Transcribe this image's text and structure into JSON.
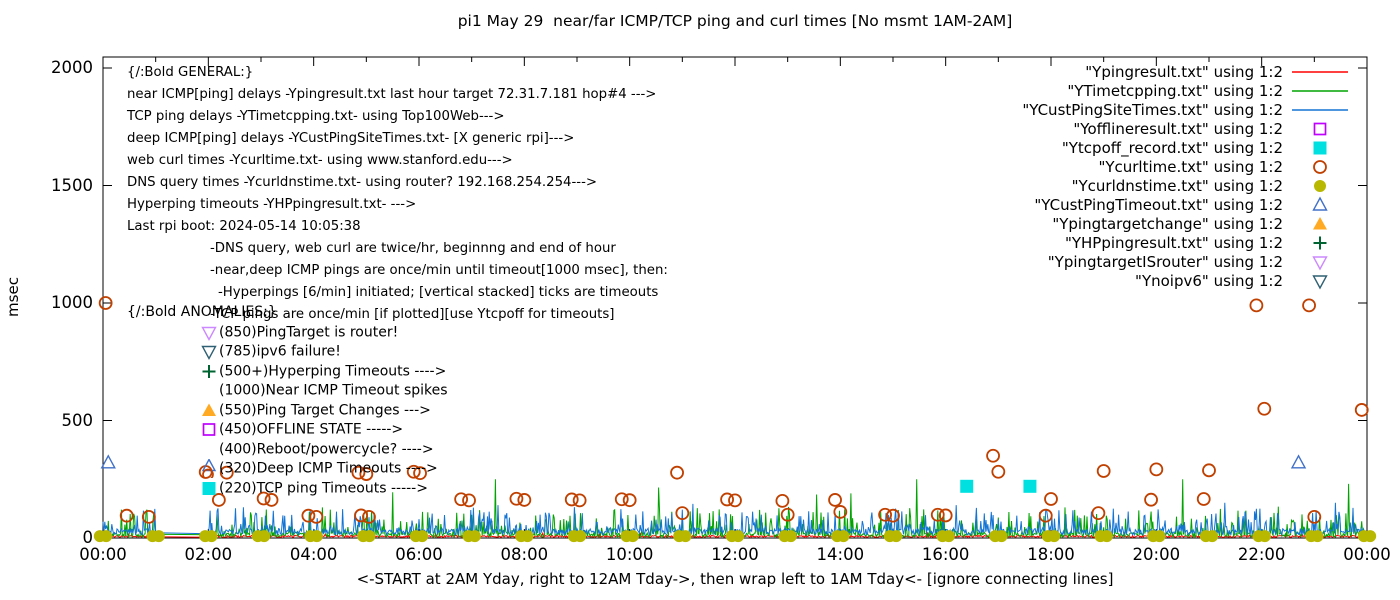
{
  "title": "pi1 May 29  near/far ICMP/TCP ping and curl times [No msmt 1AM-2AM]",
  "axes": {
    "y_label": "msec",
    "x_label": "<-START at 2AM Yday, right to 12AM Tday->, then wrap left to 1AM Tday<- [ignore connecting lines]",
    "y_ticks": [
      0,
      500,
      1000,
      1500,
      2000
    ],
    "x_tick_labels": [
      "00:00",
      "02:00",
      "04:00",
      "06:00",
      "08:00",
      "10:00",
      "12:00",
      "14:00",
      "16:00",
      "18:00",
      "20:00",
      "22:00",
      "00:00"
    ]
  },
  "colors": {
    "near_icmp_red": "#ff0000",
    "tcp_ping_green": "#00a400",
    "deep_icmp_blue": "#1474d4",
    "offline_magenta": "#bf00ff",
    "tcpoff_cyan": "#00e0e0",
    "curl_orange": "#c04000",
    "dns_olive": "#b8b800",
    "deep_timeout_blue": "#4070c8",
    "target_change_orange": "#ffaa22",
    "hyperping_green": "#006432",
    "isrouter_violet": "#cc88ff",
    "noipv6_steel": "#2f6073",
    "text": "#000000",
    "background": "#ffffff"
  },
  "legend": [
    {
      "label": "\"Ypingresult.txt\" using 1:2",
      "marker": "line",
      "color": "#ff0000"
    },
    {
      "label": "\"YTimetcpping.txt\" using 1:2",
      "marker": "line",
      "color": "#00a400"
    },
    {
      "label": "\"YCustPingSiteTimes.txt\" using 1:2",
      "marker": "line",
      "color": "#1474d4"
    },
    {
      "label": "\"Yofflineresult.txt\" using 1:2",
      "marker": "square-open",
      "color": "#bf00ff"
    },
    {
      "label": "\"Ytcpoff_record.txt\" using 1:2",
      "marker": "square-filled",
      "color": "#00e0e0"
    },
    {
      "label": "\"Ycurltime.txt\" using 1:2",
      "marker": "circle-open",
      "color": "#c04000"
    },
    {
      "label": "\"Ycurldnstime.txt\" using 1:2",
      "marker": "circle-filled",
      "color": "#b8b800"
    },
    {
      "label": "\"YCustPingTimeout.txt\" using 1:2",
      "marker": "triangle-up-open",
      "color": "#4070c8"
    },
    {
      "label": "\"Ypingtargetchange\" using 1:2",
      "marker": "triangle-up-filled",
      "color": "#ffaa22"
    },
    {
      "label": "\"YHPpingresult.txt\" using 1:2",
      "marker": "plus",
      "color": "#006432"
    },
    {
      "label": "\"YpingtargetISrouter\" using 1:2",
      "marker": "triangle-down-open",
      "color": "#cc88ff"
    },
    {
      "label": "\"Ynoipv6\" using 1:2",
      "marker": "triangle-down-open",
      "color": "#2f6073"
    }
  ],
  "annotations": {
    "general": [
      {
        "text": "{/:Bold GENERAL:}",
        "indent": 0
      },
      {
        "text": "near ICMP[ping] delays -Ypingresult.txt last hour target 72.31.7.181 hop#4 --->",
        "indent": 0
      },
      {
        "text": "TCP ping delays -YTimetcpping.txt- using Top100Web--->",
        "indent": 0
      },
      {
        "text": "deep ICMP[ping] delays -YCustPingSiteTimes.txt- [X generic rpi]--->",
        "indent": 0
      },
      {
        "text": "web curl times -Ycurltime.txt- using www.stanford.edu--->",
        "indent": 0
      },
      {
        "text": "DNS query times -Ycurldnstime.txt- using router? 192.168.254.254--->",
        "indent": 0
      },
      {
        "text": "Hyperping timeouts -YHPpingresult.txt- --->",
        "indent": 0
      },
      {
        "text": "Last rpi boot: 2024-05-14 10:05:38",
        "indent": 0
      },
      {
        "text": "-DNS query, web curl are twice/hr, beginnng and end of hour",
        "indent": 83
      },
      {
        "text": "-near,deep ICMP pings are once/min until timeout[1000 msec], then:",
        "indent": 83
      },
      {
        "text": "-Hyperpings [6/min] initiated; [vertical stacked] ticks are timeouts",
        "indent": 91
      },
      {
        "text": "-TCP pings are once/min [if plotted][use Ytcpoff for timeouts]",
        "indent": 83
      }
    ],
    "anomalies_header": "{/:Bold ANOMALIES:}",
    "anomalies": [
      {
        "icon": "triangle-down-open",
        "color": "#cc88ff",
        "text": "(850)PingTarget is router!"
      },
      {
        "icon": "triangle-down-open",
        "color": "#2f6073",
        "text": "(785)ipv6 failure!"
      },
      {
        "icon": "plus",
        "color": "#006432",
        "text": "(500+)Hyperping Timeouts ---->"
      },
      {
        "icon": "none",
        "color": "",
        "text": "(1000)Near ICMP Timeout spikes"
      },
      {
        "icon": "triangle-up-filled",
        "color": "#ffaa22",
        "text": "(550)Ping Target Changes --->"
      },
      {
        "icon": "square-open",
        "color": "#bf00ff",
        "text": "(450)OFFLINE STATE ----->"
      },
      {
        "icon": "none",
        "color": "",
        "text": "(400)Reboot/powercycle? ---->"
      },
      {
        "icon": "triangle-circle",
        "color": "#4070c8",
        "text": "(320)Deep ICMP Timeouts ---->"
      },
      {
        "icon": "square-filled",
        "color": "#00e0e0",
        "text": "(220)TCP ping Timeouts ----->"
      }
    ]
  },
  "chart_data": {
    "type": "line",
    "x_unit": "time of day (24 h window, wraps per x-axis label)",
    "x_range_hours": [
      0,
      24
    ],
    "ylim_msec": [
      0,
      2047
    ],
    "y_ticks": [
      0,
      500,
      1000,
      1500,
      2000
    ],
    "x_tick_hours": [
      0,
      2,
      4,
      6,
      8,
      10,
      12,
      14,
      16,
      18,
      20,
      22,
      24
    ],
    "no_measurement_gap_hours": [
      1.02,
      2.0
    ],
    "grid": false,
    "legend_position": "top-right inside, labels right-aligned",
    "series": [
      {
        "name": "Ypingresult.txt near ICMP ping",
        "color": "#ff0000",
        "style": "line",
        "sampling": "once/min",
        "baseline_msec": [
          3,
          12
        ],
        "spikes": []
      },
      {
        "name": "YTimetcpping.txt TCP ping",
        "color": "#00a400",
        "style": "line",
        "sampling": "once/min",
        "baseline_msec": [
          4,
          120
        ],
        "spikes": [
          [
            0.95,
            75
          ],
          [
            5.5,
            195
          ],
          [
            7.45,
            250
          ],
          [
            10.55,
            215
          ],
          [
            13.55,
            185
          ],
          [
            14.2,
            190
          ],
          [
            15.45,
            250
          ],
          [
            20.5,
            250
          ],
          [
            23.65,
            230
          ]
        ]
      },
      {
        "name": "YCustPingSiteTimes.txt deep ICMP ping",
        "color": "#1474d4",
        "style": "line",
        "sampling": "once/min",
        "baseline_msec": [
          12,
          135
        ],
        "spikes": [
          [
            7.5,
            140
          ],
          [
            11.2,
            145
          ],
          [
            16.2,
            140
          ],
          [
            21.3,
            150
          ],
          [
            23.4,
            150
          ]
        ]
      }
    ],
    "scatter": [
      {
        "name": "Ycurltime.txt web curl times",
        "marker": "circle-open",
        "color": "#c04000",
        "points": [
          [
            0.05,
            1000
          ],
          [
            0.45,
            95
          ],
          [
            0.87,
            90
          ],
          [
            1.95,
            281
          ],
          [
            2.2,
            162
          ],
          [
            2.35,
            278
          ],
          [
            3.05,
            168
          ],
          [
            3.2,
            162
          ],
          [
            3.9,
            95
          ],
          [
            4.05,
            90
          ],
          [
            4.85,
            278
          ],
          [
            4.9,
            96
          ],
          [
            5.0,
            272
          ],
          [
            5.05,
            90
          ],
          [
            5.9,
            282
          ],
          [
            6.02,
            276
          ],
          [
            6.8,
            165
          ],
          [
            6.95,
            160
          ],
          [
            7.85,
            167
          ],
          [
            8.0,
            162
          ],
          [
            8.9,
            164
          ],
          [
            9.05,
            160
          ],
          [
            9.85,
            165
          ],
          [
            10.0,
            161
          ],
          [
            10.9,
            278
          ],
          [
            11.0,
            106
          ],
          [
            11.85,
            164
          ],
          [
            12.0,
            160
          ],
          [
            12.9,
            158
          ],
          [
            13.0,
            99
          ],
          [
            13.9,
            162
          ],
          [
            14.0,
            111
          ],
          [
            14.85,
            99
          ],
          [
            15.0,
            95
          ],
          [
            15.85,
            99
          ],
          [
            16.0,
            96
          ],
          [
            16.9,
            350
          ],
          [
            17.0,
            282
          ],
          [
            17.9,
            95
          ],
          [
            18.0,
            166
          ],
          [
            18.9,
            106
          ],
          [
            19.0,
            285
          ],
          [
            19.9,
            163
          ],
          [
            20.0,
            292
          ],
          [
            20.9,
            166
          ],
          [
            21.0,
            288
          ],
          [
            21.9,
            990
          ],
          [
            22.05,
            550
          ],
          [
            22.9,
            990
          ],
          [
            23.0,
            90
          ],
          [
            23.9,
            545
          ]
        ]
      },
      {
        "name": "Ycurldnstime.txt DNS query times (twice/hr at hour marks)",
        "marker": "circle-filled",
        "color": "#b8b800",
        "msec": 8,
        "hourly_pairs": {
          "from": 0,
          "to": 24,
          "offset": 0.06
        }
      },
      {
        "name": "Ytcpoff_record.txt TCP ping timeouts",
        "marker": "square-filled",
        "color": "#00e0e0",
        "points": [
          [
            16.4,
            220
          ],
          [
            17.6,
            220
          ]
        ]
      },
      {
        "name": "YCustPingTimeout.txt deep ICMP timeouts",
        "marker": "triangle-up-open",
        "color": "#4070c8",
        "points": [
          [
            0.1,
            320
          ],
          [
            22.7,
            320
          ]
        ]
      }
    ]
  }
}
